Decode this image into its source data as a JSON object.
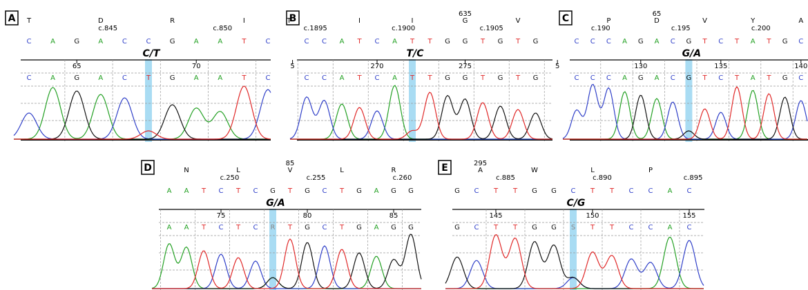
{
  "panels": [
    {
      "label": "A",
      "amino_acids": [
        "T",
        "D",
        "R",
        "I"
      ],
      "coordinates": [
        "c.845",
        "c.850"
      ],
      "reference_bases": [
        "C",
        "A",
        "G",
        "A",
        "C",
        "C",
        "G",
        "A",
        "A",
        "T",
        "C"
      ],
      "mutation": "C/T",
      "ruler_numbers": [
        "65",
        "70"
      ],
      "called_bases": [
        "C",
        "A",
        "G",
        "A",
        "C",
        "T",
        "G",
        "A",
        "A",
        "T",
        "C"
      ]
    },
    {
      "label": "B",
      "residue_number": "635",
      "amino_acids": [
        "T",
        "I",
        "I",
        "G",
        "V"
      ],
      "coordinates": [
        "c.1895",
        "c.1900",
        "c.1905"
      ],
      "reference_bases": [
        "C",
        "C",
        "A",
        "T",
        "C",
        "A",
        "T",
        "T",
        "G",
        "G",
        "T",
        "G",
        "T",
        "G"
      ],
      "mutation": "T/C",
      "ruler_numbers": [
        "5",
        "270",
        "275"
      ],
      "called_bases": [
        "C",
        "C",
        "A",
        "T",
        "C",
        "A",
        "T",
        "T",
        "G",
        "G",
        "T",
        "G",
        "T",
        "G"
      ]
    },
    {
      "label": "C",
      "residue_number": "65",
      "amino_acids": [
        "P",
        "D",
        "V",
        "Y",
        "A"
      ],
      "coordinates": [
        "c.190",
        "c.195",
        "c.200"
      ],
      "reference_bases": [
        "C",
        "C",
        "C",
        "A",
        "G",
        "A",
        "C",
        "G",
        "T",
        "C",
        "T",
        "A",
        "T",
        "G",
        "C"
      ],
      "mutation": "G/A",
      "ruler_numbers": [
        "5",
        "130",
        "135",
        "140"
      ],
      "called_bases": [
        "C",
        "C",
        "C",
        "A",
        "G",
        "A",
        "C",
        "G",
        "T",
        "C",
        "T",
        "A",
        "T",
        "G",
        "C"
      ]
    },
    {
      "label": "D",
      "residue_number": "85",
      "amino_acids": [
        "N",
        "L",
        "V",
        "L",
        "R"
      ],
      "coordinates": [
        "c.250",
        "c.255",
        "c.260"
      ],
      "reference_bases": [
        "A",
        "A",
        "T",
        "C",
        "T",
        "C",
        "G",
        "T",
        "G",
        "C",
        "T",
        "G",
        "A",
        "G",
        "G"
      ],
      "mutation": "G/A",
      "ruler_numbers": [
        "75",
        "80",
        "85"
      ],
      "called_bases": [
        "A",
        "A",
        "T",
        "C",
        "T",
        "C",
        "R",
        "T",
        "G",
        "C",
        "T",
        "G",
        "A",
        "G",
        "G"
      ]
    },
    {
      "label": "E",
      "residue_number": "295",
      "amino_acids": [
        "A",
        "W",
        "L",
        "P"
      ],
      "coordinates": [
        "c.885",
        "c.890",
        "c.895"
      ],
      "reference_bases": [
        "G",
        "C",
        "T",
        "T",
        "G",
        "G",
        "C",
        "T",
        "T",
        "C",
        "C",
        "A",
        "C"
      ],
      "mutation": "C/G",
      "ruler_numbers": [
        "145",
        "150",
        "155"
      ],
      "called_bases": [
        "G",
        "C",
        "T",
        "T",
        "G",
        "G",
        "S",
        "T",
        "T",
        "C",
        "C",
        "A",
        "C"
      ]
    }
  ]
}
